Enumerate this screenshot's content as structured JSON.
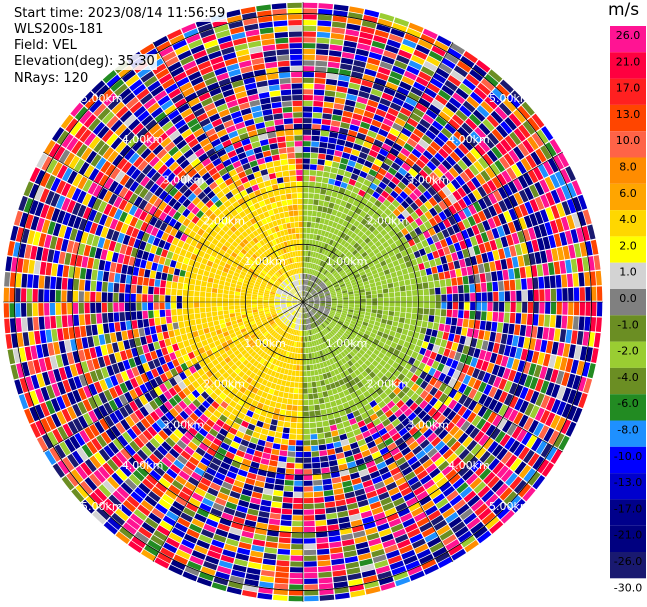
{
  "header": {
    "start_time": "Start time: 2023/08/14 11:56:59",
    "instrument": "WLS200s-181",
    "field": "Field: VEL",
    "elevation": "Elevation(deg): 35.30",
    "nrays": "NRays: 120"
  },
  "colorbar": {
    "unit": "m/s",
    "ticks": [
      "26.0",
      "21.0",
      "17.0",
      "13.0",
      "10.0",
      "8.0",
      "6.0",
      "4.0",
      "2.0",
      "1.0",
      "0.0",
      "-1.0",
      "-2.0",
      "-4.0",
      "-6.0",
      "-8.0",
      "-10.0",
      "-13.0",
      "-17.0",
      "-21.0",
      "-26.0",
      "-30.0"
    ],
    "colors": [
      "#ff1493",
      "#ff0040",
      "#ff2020",
      "#ff4500",
      "#ff6347",
      "#ff8c00",
      "#ffa500",
      "#ffd700",
      "#ffff00",
      "#d3d3d3",
      "#808080",
      "#6b8e23",
      "#9acd32",
      "#6b8e23",
      "#228b22",
      "#1e90ff",
      "#0000ff",
      "#0000cd",
      "#00008b",
      "#000080",
      "#191970"
    ]
  },
  "chart_data": {
    "type": "ppi",
    "field": "VEL",
    "units": "m/s",
    "elevation_deg": 35.3,
    "n_rays": 120,
    "range_rings_km": [
      1.0,
      2.0,
      3.0,
      4.0,
      5.0
    ],
    "ring_labels": [
      "1.00km",
      "2.00km",
      "3.00km",
      "4.00km",
      "5.00km"
    ],
    "max_range_km": 5.2,
    "value_range": [
      -30.0,
      26.0
    ],
    "near_field_pattern": {
      "west_sector_mean_ms": 3.0,
      "east_sector_mean_ms": -3.0,
      "noise_beyond_km": 2.6
    }
  }
}
